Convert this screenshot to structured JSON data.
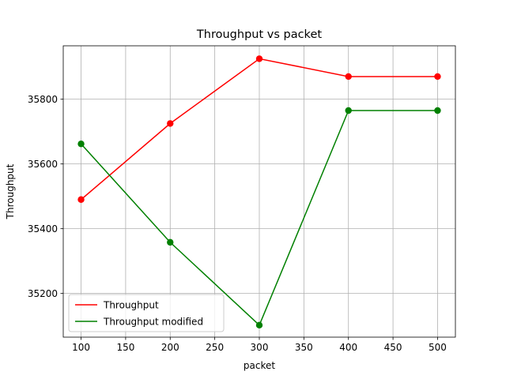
{
  "chart_data": {
    "type": "line",
    "title": "Throughput vs packet",
    "xlabel": "packet",
    "ylabel": "Throughput",
    "x": [
      100,
      200,
      300,
      400,
      500
    ],
    "xlim": [
      80,
      520
    ],
    "ylim": [
      35065,
      35965
    ],
    "xticks": [
      100,
      150,
      200,
      250,
      300,
      350,
      400,
      450,
      500
    ],
    "yticks": [
      35200,
      35400,
      35600,
      35800
    ],
    "grid": true,
    "legend_position": "lower-left",
    "series": [
      {
        "name": "Throughput",
        "color": "#ff0000",
        "values": [
          35490,
          35725,
          35925,
          35870,
          35870
        ]
      },
      {
        "name": "Throughput modified",
        "color": "#008000",
        "values": [
          35662,
          35358,
          35102,
          35765,
          35765
        ]
      }
    ]
  }
}
